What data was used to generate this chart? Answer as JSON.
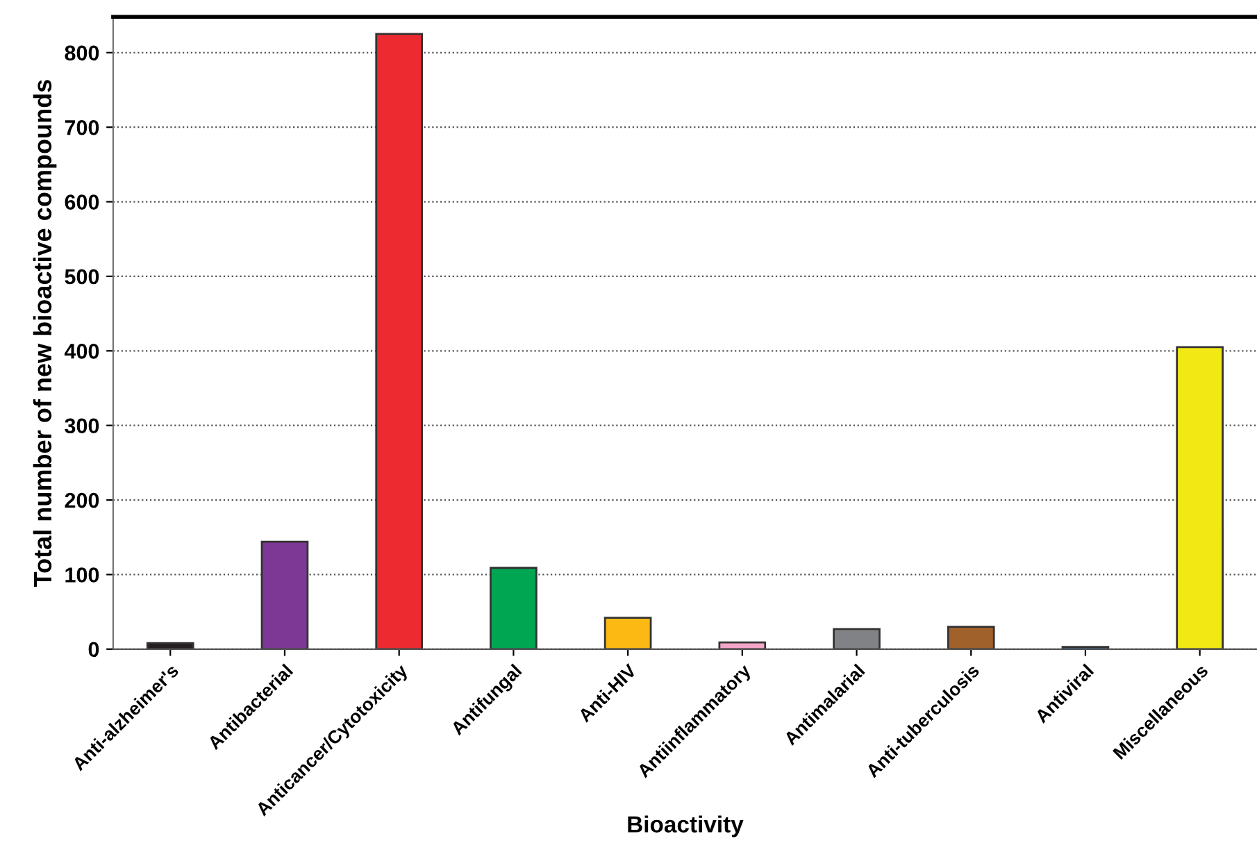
{
  "chart_data": {
    "type": "bar",
    "xlabel": "Bioactivity",
    "ylabel": "Total number of new bioactive compounds",
    "categories": [
      "Anti-alzheimer's",
      "Antibacterial",
      "Anticancer/Cytotoxicity",
      "Antifungal",
      "Anti-HIV",
      "Antiinflammatory",
      "Antimalarial",
      "Anti-tuberculosis",
      "Antiviral",
      "Miscellaneous"
    ],
    "values": [
      8,
      144,
      825,
      109,
      42,
      9,
      27,
      30,
      3,
      405
    ],
    "colors": [
      "#231f20",
      "#7d3896",
      "#ec2a2f",
      "#00a651",
      "#fdb913",
      "#f4a6c8",
      "#808285",
      "#a0612b",
      "#2e75b6",
      "#f2e813"
    ],
    "ylim": [
      0,
      848
    ],
    "yticks": [
      0,
      100,
      200,
      300,
      400,
      500,
      600,
      700,
      800
    ],
    "grid": "y",
    "legend": false
  }
}
